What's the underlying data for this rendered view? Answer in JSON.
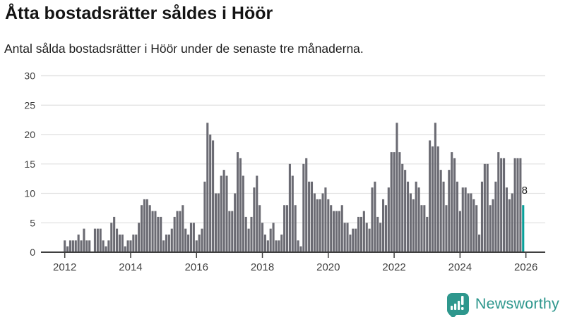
{
  "header": {
    "title": "Åtta bostadsrätter såldes i Höör",
    "subtitle": "Antal sålda bostadsrätter i Höör under de senaste tre månaderna."
  },
  "chart_data": {
    "type": "bar",
    "title": "Åtta bostadsrätter såldes i Höör",
    "subtitle": "Antal sålda bostadsrätter i Höör under de senaste tre månaderna.",
    "xlabel": "",
    "ylabel": "",
    "ylim": [
      0,
      30
    ],
    "y_ticks": [
      0,
      5,
      10,
      15,
      20,
      25,
      30
    ],
    "x_tick_labels": [
      "2012",
      "2014",
      "2016",
      "2018",
      "2020",
      "2022",
      "2024",
      "2026"
    ],
    "grid": "horizontal",
    "legend": "none",
    "start_month": "2012-01",
    "values_by_year": {
      "2012": [
        2,
        1,
        2,
        2,
        2,
        3,
        2,
        4,
        2,
        2,
        0,
        4
      ],
      "2013": [
        4,
        4,
        2,
        1,
        2,
        5,
        6,
        4,
        3,
        3,
        1,
        2
      ],
      "2014": [
        2,
        3,
        3,
        5,
        8,
        9,
        9,
        8,
        7,
        7,
        6,
        6
      ],
      "2015": [
        2,
        3,
        3,
        4,
        6,
        7,
        7,
        8,
        4,
        3,
        5,
        5
      ],
      "2016": [
        2,
        3,
        4,
        12,
        22,
        20,
        19,
        10,
        10,
        13,
        14,
        13
      ],
      "2017": [
        7,
        7,
        10,
        17,
        16,
        13,
        6,
        4,
        6,
        11,
        13,
        8
      ],
      "2018": [
        5,
        3,
        2,
        4,
        5,
        2,
        2,
        3,
        8,
        8,
        15,
        13
      ],
      "2019": [
        8,
        2,
        1,
        15,
        16,
        12,
        12,
        10,
        9,
        9,
        10,
        11
      ],
      "2020": [
        9,
        8,
        7,
        7,
        7,
        8,
        5,
        5,
        3,
        4,
        4,
        6
      ],
      "2021": [
        6,
        7,
        5,
        4,
        11,
        12,
        6,
        5,
        9,
        8,
        11,
        17
      ],
      "2022": [
        17,
        22,
        17,
        15,
        14,
        12,
        10,
        9,
        12,
        11,
        8,
        8
      ],
      "2023": [
        6,
        19,
        18,
        22,
        18,
        14,
        12,
        8,
        14,
        17,
        16,
        12
      ],
      "2024": [
        7,
        11,
        11,
        10,
        10,
        9,
        8,
        3,
        12,
        15,
        15,
        8
      ],
      "2025": [
        9,
        12,
        17,
        16,
        16,
        11,
        9,
        10,
        16,
        16,
        16,
        8
      ]
    },
    "highlight": {
      "position": "last",
      "value": 8,
      "label": "8"
    },
    "colors": {
      "bar": "#6b6b73",
      "highlight": "#0aa19b",
      "gridline": "#e2e2e2",
      "axis": "#3f3f3f",
      "annotation": "#222222"
    }
  },
  "footer": {
    "brand": "Newsworthy",
    "brand_color": "#2e978d",
    "logo_icon": "bar-chart-speech-bubble"
  }
}
